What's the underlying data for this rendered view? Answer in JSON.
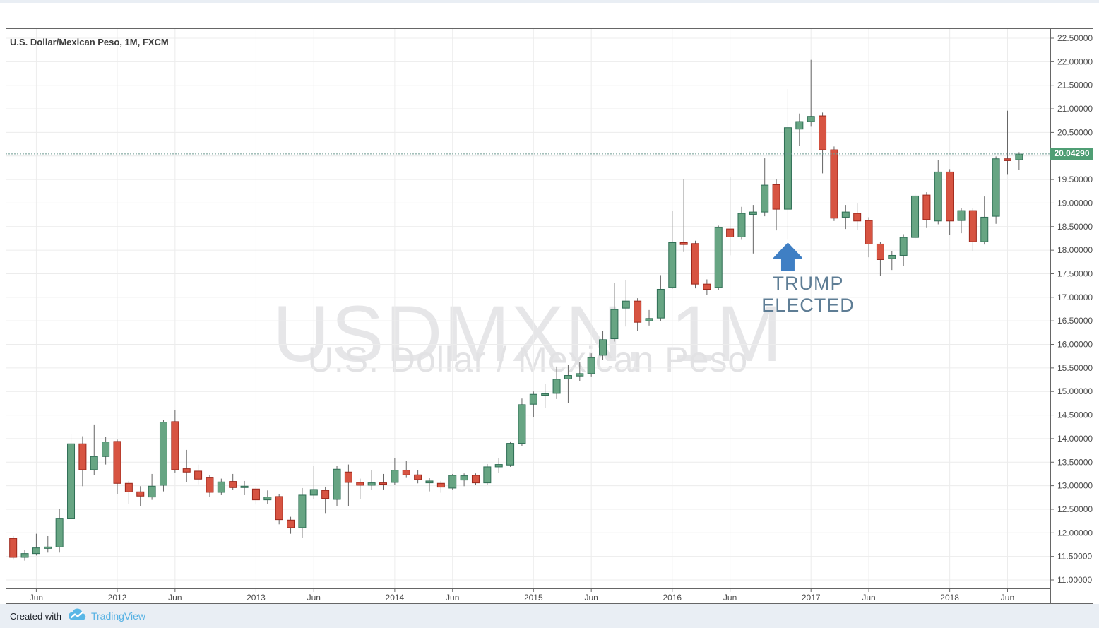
{
  "header": {
    "legend": "U.S. Dollar/Mexican Peso, 1M, FXCM"
  },
  "watermark": {
    "line1": "USDMXN, 1M",
    "line2": "U.S. Dollar / Mexican Peso"
  },
  "annotation": {
    "label": "TRUMP ELECTED",
    "type": "arrow-up",
    "anchor_month": "2016-11",
    "text_color": "#5e7d95",
    "arrow_color": "#3f7fc4"
  },
  "price_axis": {
    "labels": [
      "22.50000",
      "22.00000",
      "21.50000",
      "21.00000",
      "20.50000",
      "19.50000",
      "19.00000",
      "18.50000",
      "18.00000",
      "17.50000",
      "17.00000",
      "16.50000",
      "16.00000",
      "15.50000",
      "15.00000",
      "14.50000",
      "14.00000",
      "13.50000",
      "13.00000",
      "12.50000",
      "12.00000",
      "11.50000",
      "11.00000"
    ],
    "min": 11.0,
    "max": 22.5,
    "step": 0.5,
    "last_price_label": "20.04290",
    "last_price": 20.0429,
    "badge_color": "#4f9e74",
    "text_color": "#4c4c4c",
    "last_price_line_color": "#6d9b91"
  },
  "time_axis": {
    "labels": [
      {
        "text": "Jun",
        "m": -7
      },
      {
        "text": "2012",
        "m": 0
      },
      {
        "text": "Jun",
        "m": 5
      },
      {
        "text": "2013",
        "m": 12
      },
      {
        "text": "Jun",
        "m": 17
      },
      {
        "text": "2014",
        "m": 24
      },
      {
        "text": "Jun",
        "m": 29
      },
      {
        "text": "2015",
        "m": 36
      },
      {
        "text": "Jun",
        "m": 41
      },
      {
        "text": "2016",
        "m": 48
      },
      {
        "text": "Jun",
        "m": 53
      },
      {
        "text": "2017",
        "m": 60
      },
      {
        "text": "Jun",
        "m": 65
      },
      {
        "text": "2018",
        "m": 72
      },
      {
        "text": "Jun",
        "m": 77
      }
    ],
    "text_color": "#4c4c4c"
  },
  "footer": {
    "created_with": "Created with",
    "brand": "TradingView",
    "brand_color": "#55b1e3",
    "logo": "tradingview-cloud-logo"
  },
  "chart_data": {
    "type": "candlestick",
    "symbol": "USDMXN",
    "interval": "1M",
    "provider": "FXCM",
    "title": "U.S. Dollar / Mexican Peso",
    "ylim": [
      11.0,
      22.5
    ],
    "grid": true,
    "up_color": "#67a583",
    "up_border": "#2f6e55",
    "down_color": "#d75442",
    "down_border": "#9d271b",
    "wick_color": "#666666",
    "candles": [
      {
        "t": "2011-04",
        "o": 11.88,
        "h": 11.93,
        "l": 11.43,
        "c": 11.48
      },
      {
        "t": "2011-05",
        "o": 11.48,
        "h": 11.63,
        "l": 11.41,
        "c": 11.56
      },
      {
        "t": "2011-06",
        "o": 11.56,
        "h": 11.98,
        "l": 11.52,
        "c": 11.68
      },
      {
        "t": "2011-07",
        "o": 11.68,
        "h": 11.93,
        "l": 11.58,
        "c": 11.7
      },
      {
        "t": "2011-08",
        "o": 11.7,
        "h": 12.5,
        "l": 11.58,
        "c": 12.31
      },
      {
        "t": "2011-09",
        "o": 12.31,
        "h": 14.1,
        "l": 12.28,
        "c": 13.89
      },
      {
        "t": "2011-10",
        "o": 13.89,
        "h": 14.05,
        "l": 12.99,
        "c": 13.34
      },
      {
        "t": "2011-11",
        "o": 13.34,
        "h": 14.3,
        "l": 13.23,
        "c": 13.62
      },
      {
        "t": "2011-12",
        "o": 13.62,
        "h": 14.03,
        "l": 13.45,
        "c": 13.93
      },
      {
        "t": "2012-01",
        "o": 13.94,
        "h": 13.98,
        "l": 12.82,
        "c": 13.05
      },
      {
        "t": "2012-02",
        "o": 13.05,
        "h": 13.1,
        "l": 12.62,
        "c": 12.87
      },
      {
        "t": "2012-03",
        "o": 12.87,
        "h": 12.99,
        "l": 12.56,
        "c": 12.78
      },
      {
        "t": "2012-04",
        "o": 12.76,
        "h": 13.25,
        "l": 12.7,
        "c": 12.99
      },
      {
        "t": "2012-05",
        "o": 13.01,
        "h": 14.39,
        "l": 12.88,
        "c": 14.35
      },
      {
        "t": "2012-06",
        "o": 14.36,
        "h": 14.6,
        "l": 13.28,
        "c": 13.34
      },
      {
        "t": "2012-07",
        "o": 13.36,
        "h": 13.76,
        "l": 13.08,
        "c": 13.29
      },
      {
        "t": "2012-08",
        "o": 13.31,
        "h": 13.45,
        "l": 13.03,
        "c": 13.14
      },
      {
        "t": "2012-09",
        "o": 13.18,
        "h": 13.23,
        "l": 12.76,
        "c": 12.86
      },
      {
        "t": "2012-10",
        "o": 12.86,
        "h": 13.15,
        "l": 12.8,
        "c": 13.08
      },
      {
        "t": "2012-11",
        "o": 13.09,
        "h": 13.25,
        "l": 12.91,
        "c": 12.96
      },
      {
        "t": "2012-12",
        "o": 12.96,
        "h": 13.1,
        "l": 12.8,
        "c": 12.99
      },
      {
        "t": "2013-01",
        "o": 12.93,
        "h": 12.98,
        "l": 12.6,
        "c": 12.7
      },
      {
        "t": "2013-02",
        "o": 12.7,
        "h": 12.9,
        "l": 12.62,
        "c": 12.76
      },
      {
        "t": "2013-03",
        "o": 12.77,
        "h": 12.82,
        "l": 12.18,
        "c": 12.28
      },
      {
        "t": "2013-04",
        "o": 12.27,
        "h": 12.34,
        "l": 11.98,
        "c": 12.11
      },
      {
        "t": "2013-05",
        "o": 12.11,
        "h": 12.95,
        "l": 11.9,
        "c": 12.8
      },
      {
        "t": "2013-06",
        "o": 12.8,
        "h": 13.42,
        "l": 12.72,
        "c": 12.92
      },
      {
        "t": "2013-07",
        "o": 12.9,
        "h": 12.98,
        "l": 12.42,
        "c": 12.73
      },
      {
        "t": "2013-08",
        "o": 12.71,
        "h": 13.42,
        "l": 12.56,
        "c": 13.35
      },
      {
        "t": "2013-09",
        "o": 13.29,
        "h": 13.45,
        "l": 12.57,
        "c": 13.07
      },
      {
        "t": "2013-10",
        "o": 13.07,
        "h": 13.15,
        "l": 12.72,
        "c": 13.01
      },
      {
        "t": "2013-11",
        "o": 13.01,
        "h": 13.33,
        "l": 12.91,
        "c": 13.06
      },
      {
        "t": "2013-12",
        "o": 13.06,
        "h": 13.25,
        "l": 12.92,
        "c": 13.03
      },
      {
        "t": "2014-01",
        "o": 13.07,
        "h": 13.59,
        "l": 13.02,
        "c": 13.33
      },
      {
        "t": "2014-02",
        "o": 13.33,
        "h": 13.52,
        "l": 13.18,
        "c": 13.23
      },
      {
        "t": "2014-03",
        "o": 13.23,
        "h": 13.33,
        "l": 13.05,
        "c": 13.13
      },
      {
        "t": "2014-04",
        "o": 13.06,
        "h": 13.16,
        "l": 12.88,
        "c": 13.1
      },
      {
        "t": "2014-05",
        "o": 13.05,
        "h": 13.1,
        "l": 12.85,
        "c": 12.97
      },
      {
        "t": "2014-06",
        "o": 12.95,
        "h": 13.25,
        "l": 12.92,
        "c": 13.22
      },
      {
        "t": "2014-07",
        "o": 13.12,
        "h": 13.26,
        "l": 12.99,
        "c": 13.21
      },
      {
        "t": "2014-08",
        "o": 13.22,
        "h": 13.26,
        "l": 13.02,
        "c": 13.06
      },
      {
        "t": "2014-09",
        "o": 13.06,
        "h": 13.46,
        "l": 13.01,
        "c": 13.4
      },
      {
        "t": "2014-10",
        "o": 13.4,
        "h": 13.58,
        "l": 13.27,
        "c": 13.45
      },
      {
        "t": "2014-11",
        "o": 13.44,
        "h": 13.94,
        "l": 13.4,
        "c": 13.9
      },
      {
        "t": "2014-12",
        "o": 13.9,
        "h": 14.85,
        "l": 13.84,
        "c": 14.72
      },
      {
        "t": "2015-01",
        "o": 14.73,
        "h": 15.0,
        "l": 14.45,
        "c": 14.94
      },
      {
        "t": "2015-02",
        "o": 14.94,
        "h": 15.16,
        "l": 14.65,
        "c": 14.95
      },
      {
        "t": "2015-03",
        "o": 14.96,
        "h": 15.53,
        "l": 14.84,
        "c": 15.26
      },
      {
        "t": "2015-04",
        "o": 15.27,
        "h": 15.56,
        "l": 14.75,
        "c": 15.34
      },
      {
        "t": "2015-05",
        "o": 15.33,
        "h": 15.62,
        "l": 15.22,
        "c": 15.38
      },
      {
        "t": "2015-06",
        "o": 15.38,
        "h": 15.81,
        "l": 15.32,
        "c": 15.72
      },
      {
        "t": "2015-07",
        "o": 15.77,
        "h": 16.28,
        "l": 15.67,
        "c": 16.1
      },
      {
        "t": "2015-08",
        "o": 16.12,
        "h": 17.31,
        "l": 16.06,
        "c": 16.74
      },
      {
        "t": "2015-09",
        "o": 16.77,
        "h": 17.36,
        "l": 16.38,
        "c": 16.92
      },
      {
        "t": "2015-10",
        "o": 16.92,
        "h": 16.98,
        "l": 16.28,
        "c": 16.47
      },
      {
        "t": "2015-11",
        "o": 16.5,
        "h": 16.73,
        "l": 16.4,
        "c": 16.55
      },
      {
        "t": "2015-12",
        "o": 16.56,
        "h": 17.47,
        "l": 16.5,
        "c": 17.17
      },
      {
        "t": "2016-01",
        "o": 17.21,
        "h": 18.83,
        "l": 17.18,
        "c": 18.16
      },
      {
        "t": "2016-02",
        "o": 18.16,
        "h": 19.5,
        "l": 17.96,
        "c": 18.12
      },
      {
        "t": "2016-03",
        "o": 18.14,
        "h": 18.2,
        "l": 17.19,
        "c": 17.28
      },
      {
        "t": "2016-04",
        "o": 17.28,
        "h": 17.38,
        "l": 17.05,
        "c": 17.17
      },
      {
        "t": "2016-05",
        "o": 17.21,
        "h": 18.52,
        "l": 17.16,
        "c": 18.48
      },
      {
        "t": "2016-06",
        "o": 18.45,
        "h": 19.56,
        "l": 17.89,
        "c": 18.28
      },
      {
        "t": "2016-07",
        "o": 18.28,
        "h": 18.92,
        "l": 18.22,
        "c": 18.78
      },
      {
        "t": "2016-08",
        "o": 18.76,
        "h": 18.96,
        "l": 17.93,
        "c": 18.81
      },
      {
        "t": "2016-09",
        "o": 18.81,
        "h": 19.95,
        "l": 18.72,
        "c": 19.38
      },
      {
        "t": "2016-10",
        "o": 19.39,
        "h": 19.51,
        "l": 18.42,
        "c": 18.87
      },
      {
        "t": "2016-11",
        "o": 18.87,
        "h": 21.42,
        "l": 18.22,
        "c": 20.6
      },
      {
        "t": "2016-12",
        "o": 20.57,
        "h": 20.9,
        "l": 20.21,
        "c": 20.73
      },
      {
        "t": "2017-01",
        "o": 20.73,
        "h": 22.04,
        "l": 20.62,
        "c": 20.84
      },
      {
        "t": "2017-02",
        "o": 20.85,
        "h": 20.92,
        "l": 19.63,
        "c": 20.13
      },
      {
        "t": "2017-03",
        "o": 20.13,
        "h": 20.2,
        "l": 18.62,
        "c": 18.68
      },
      {
        "t": "2017-04",
        "o": 18.7,
        "h": 18.96,
        "l": 18.45,
        "c": 18.81
      },
      {
        "t": "2017-05",
        "o": 18.78,
        "h": 18.99,
        "l": 18.43,
        "c": 18.62
      },
      {
        "t": "2017-06",
        "o": 18.63,
        "h": 18.7,
        "l": 17.85,
        "c": 18.13
      },
      {
        "t": "2017-07",
        "o": 18.13,
        "h": 18.18,
        "l": 17.46,
        "c": 17.8
      },
      {
        "t": "2017-08",
        "o": 17.82,
        "h": 17.98,
        "l": 17.58,
        "c": 17.89
      },
      {
        "t": "2017-09",
        "o": 17.89,
        "h": 18.34,
        "l": 17.67,
        "c": 18.27
      },
      {
        "t": "2017-10",
        "o": 18.27,
        "h": 19.21,
        "l": 18.22,
        "c": 19.15
      },
      {
        "t": "2017-11",
        "o": 19.17,
        "h": 19.23,
        "l": 18.47,
        "c": 18.65
      },
      {
        "t": "2017-12",
        "o": 18.62,
        "h": 19.92,
        "l": 18.55,
        "c": 19.66
      },
      {
        "t": "2018-01",
        "o": 19.66,
        "h": 19.72,
        "l": 18.32,
        "c": 18.62
      },
      {
        "t": "2018-02",
        "o": 18.63,
        "h": 18.9,
        "l": 18.36,
        "c": 18.84
      },
      {
        "t": "2018-03",
        "o": 18.84,
        "h": 18.9,
        "l": 17.99,
        "c": 18.18
      },
      {
        "t": "2018-04",
        "o": 18.18,
        "h": 19.14,
        "l": 18.12,
        "c": 18.7
      },
      {
        "t": "2018-05",
        "o": 18.72,
        "h": 19.99,
        "l": 18.56,
        "c": 19.94
      },
      {
        "t": "2018-06",
        "o": 19.94,
        "h": 20.96,
        "l": 19.6,
        "c": 19.9
      },
      {
        "t": "2018-07",
        "o": 19.92,
        "h": 20.08,
        "l": 19.7,
        "c": 20.04
      }
    ]
  }
}
